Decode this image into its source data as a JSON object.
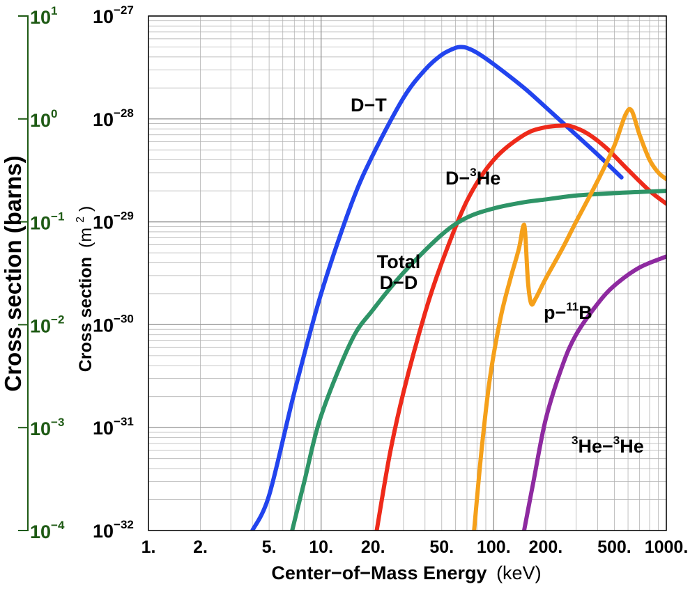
{
  "colors": {
    "dt": "#2244ee",
    "dhe3": "#ee2a1a",
    "dd": "#2e9467",
    "pb11": "#f5a01a",
    "he3he3": "#8e2aa0",
    "barns_axis": "#1e5a14",
    "grid": "#b3b3b3"
  },
  "chart_data": {
    "type": "line",
    "xlabel_main": "Center−of−Mass Energy",
    "xlabel_unit": "(keV)",
    "ylabel_main": "Cross section",
    "ylabel_unit_open": "(m",
    "ylabel_unit_exp": "2",
    "ylabel_unit_close": ")",
    "ylabel_secondary": "Cross section (barns)",
    "x_scale": "log",
    "y_scale": "log",
    "xlim": [
      1,
      1000
    ],
    "ylim": [
      1e-32,
      1e-27
    ],
    "ylim_secondary": [
      0.0001,
      10
    ],
    "grid": true,
    "x_ticks": [
      "1.",
      "2.",
      "5.",
      "10.",
      "20.",
      "50.",
      "100.",
      "200.",
      "500.",
      "1000."
    ],
    "x_tick_values": [
      1,
      2,
      5,
      10,
      20,
      50,
      100,
      200,
      500,
      1000
    ],
    "y_ticks": [
      {
        "base": "10",
        "exp": "−32"
      },
      {
        "base": "10",
        "exp": "−31"
      },
      {
        "base": "10",
        "exp": "−30"
      },
      {
        "base": "10",
        "exp": "−29"
      },
      {
        "base": "10",
        "exp": "−28"
      },
      {
        "base": "10",
        "exp": "−27"
      }
    ],
    "y_tick_values": [
      1e-32,
      1e-31,
      1e-30,
      1e-29,
      1e-28,
      1e-27
    ],
    "y2_ticks": [
      {
        "base": "10",
        "exp": "−4"
      },
      {
        "base": "10",
        "exp": "−3"
      },
      {
        "base": "10",
        "exp": "−2"
      },
      {
        "base": "10",
        "exp": "−1"
      },
      {
        "base": "10",
        "exp": "0"
      },
      {
        "base": "10",
        "exp": "1"
      }
    ],
    "series": [
      {
        "key": "dt",
        "label_parts": [
          {
            "t": "D−T",
            "sup": false
          }
        ],
        "x": [
          4,
          5,
          7,
          10,
          15,
          20,
          30,
          40,
          50,
          60,
          65,
          70,
          80,
          100,
          150,
          200,
          300,
          400,
          550
        ],
        "y": [
          1e-32,
          2.2e-32,
          2.2e-31,
          2e-30,
          1.5e-29,
          4.5e-29,
          1.6e-28,
          3e-28,
          4.2e-28,
          4.9e-28,
          5e-28,
          4.9e-28,
          4.4e-28,
          3.4e-28,
          2e-28,
          1.3e-28,
          7e-29,
          4.5e-29,
          2.7e-29
        ]
      },
      {
        "key": "dhe3",
        "label_parts": [
          {
            "t": "D−",
            "sup": false
          },
          {
            "t": "3",
            "sup": true
          },
          {
            "t": "He",
            "sup": false
          }
        ],
        "x": [
          21,
          25,
          30,
          40,
          50,
          70,
          100,
          150,
          200,
          250,
          280,
          350,
          450,
          600,
          800,
          1000
        ],
        "y": [
          1e-32,
          5.5e-32,
          2.2e-31,
          1.3e-30,
          4e-30,
          1.6e-29,
          4e-29,
          7e-29,
          8.3e-29,
          8.6e-29,
          8.5e-29,
          7.2e-29,
          5.2e-29,
          3.2e-29,
          2e-29,
          1.5e-29
        ]
      },
      {
        "key": "dd",
        "label_parts": [
          {
            "t": "Total",
            "sup": false
          },
          {
            "t": "D−D",
            "sup": false,
            "newline": true
          }
        ],
        "x": [
          6.8,
          8,
          10,
          15,
          20,
          30,
          50,
          70,
          100,
          150,
          200,
          300,
          500,
          700,
          1000
        ],
        "y": [
          1e-32,
          3e-32,
          1.3e-31,
          7e-31,
          1.4e-30,
          3.2e-30,
          7.5e-30,
          1.1e-29,
          1.35e-29,
          1.55e-29,
          1.65e-29,
          1.8e-29,
          1.9e-29,
          1.95e-29,
          2e-29
        ]
      },
      {
        "key": "pb11",
        "label_parts": [
          {
            "t": "p−",
            "sup": false
          },
          {
            "t": "11",
            "sup": true
          },
          {
            "t": "B",
            "sup": false
          }
        ],
        "x": [
          77,
          85,
          95,
          110,
          125,
          140,
          148,
          152,
          158,
          165,
          175,
          200,
          250,
          300,
          400,
          500,
          580,
          630,
          700,
          800,
          900,
          1000
        ],
        "y": [
          1e-32,
          6e-32,
          3e-31,
          1.2e-30,
          2.8e-30,
          5.5e-30,
          9e-30,
          8e-30,
          2.6e-30,
          1.6e-30,
          1.8e-30,
          2.8e-30,
          5.5e-30,
          1e-29,
          2.5e-29,
          5.5e-29,
          1.1e-28,
          1.2e-28,
          7e-29,
          4e-29,
          3e-29,
          2.6e-29
        ]
      },
      {
        "key": "he3he3",
        "label_parts": [
          {
            "t": "3",
            "sup": true
          },
          {
            "t": "He−",
            "sup": false
          },
          {
            "t": "3",
            "sup": true
          },
          {
            "t": "He",
            "sup": false
          }
        ],
        "x": [
          150,
          170,
          200,
          250,
          300,
          400,
          500,
          700,
          1000
        ],
        "y": [
          1e-32,
          3e-32,
          1.2e-31,
          4e-31,
          8e-31,
          1.6e-30,
          2.4e-30,
          3.6e-30,
          4.6e-30
        ]
      }
    ]
  }
}
